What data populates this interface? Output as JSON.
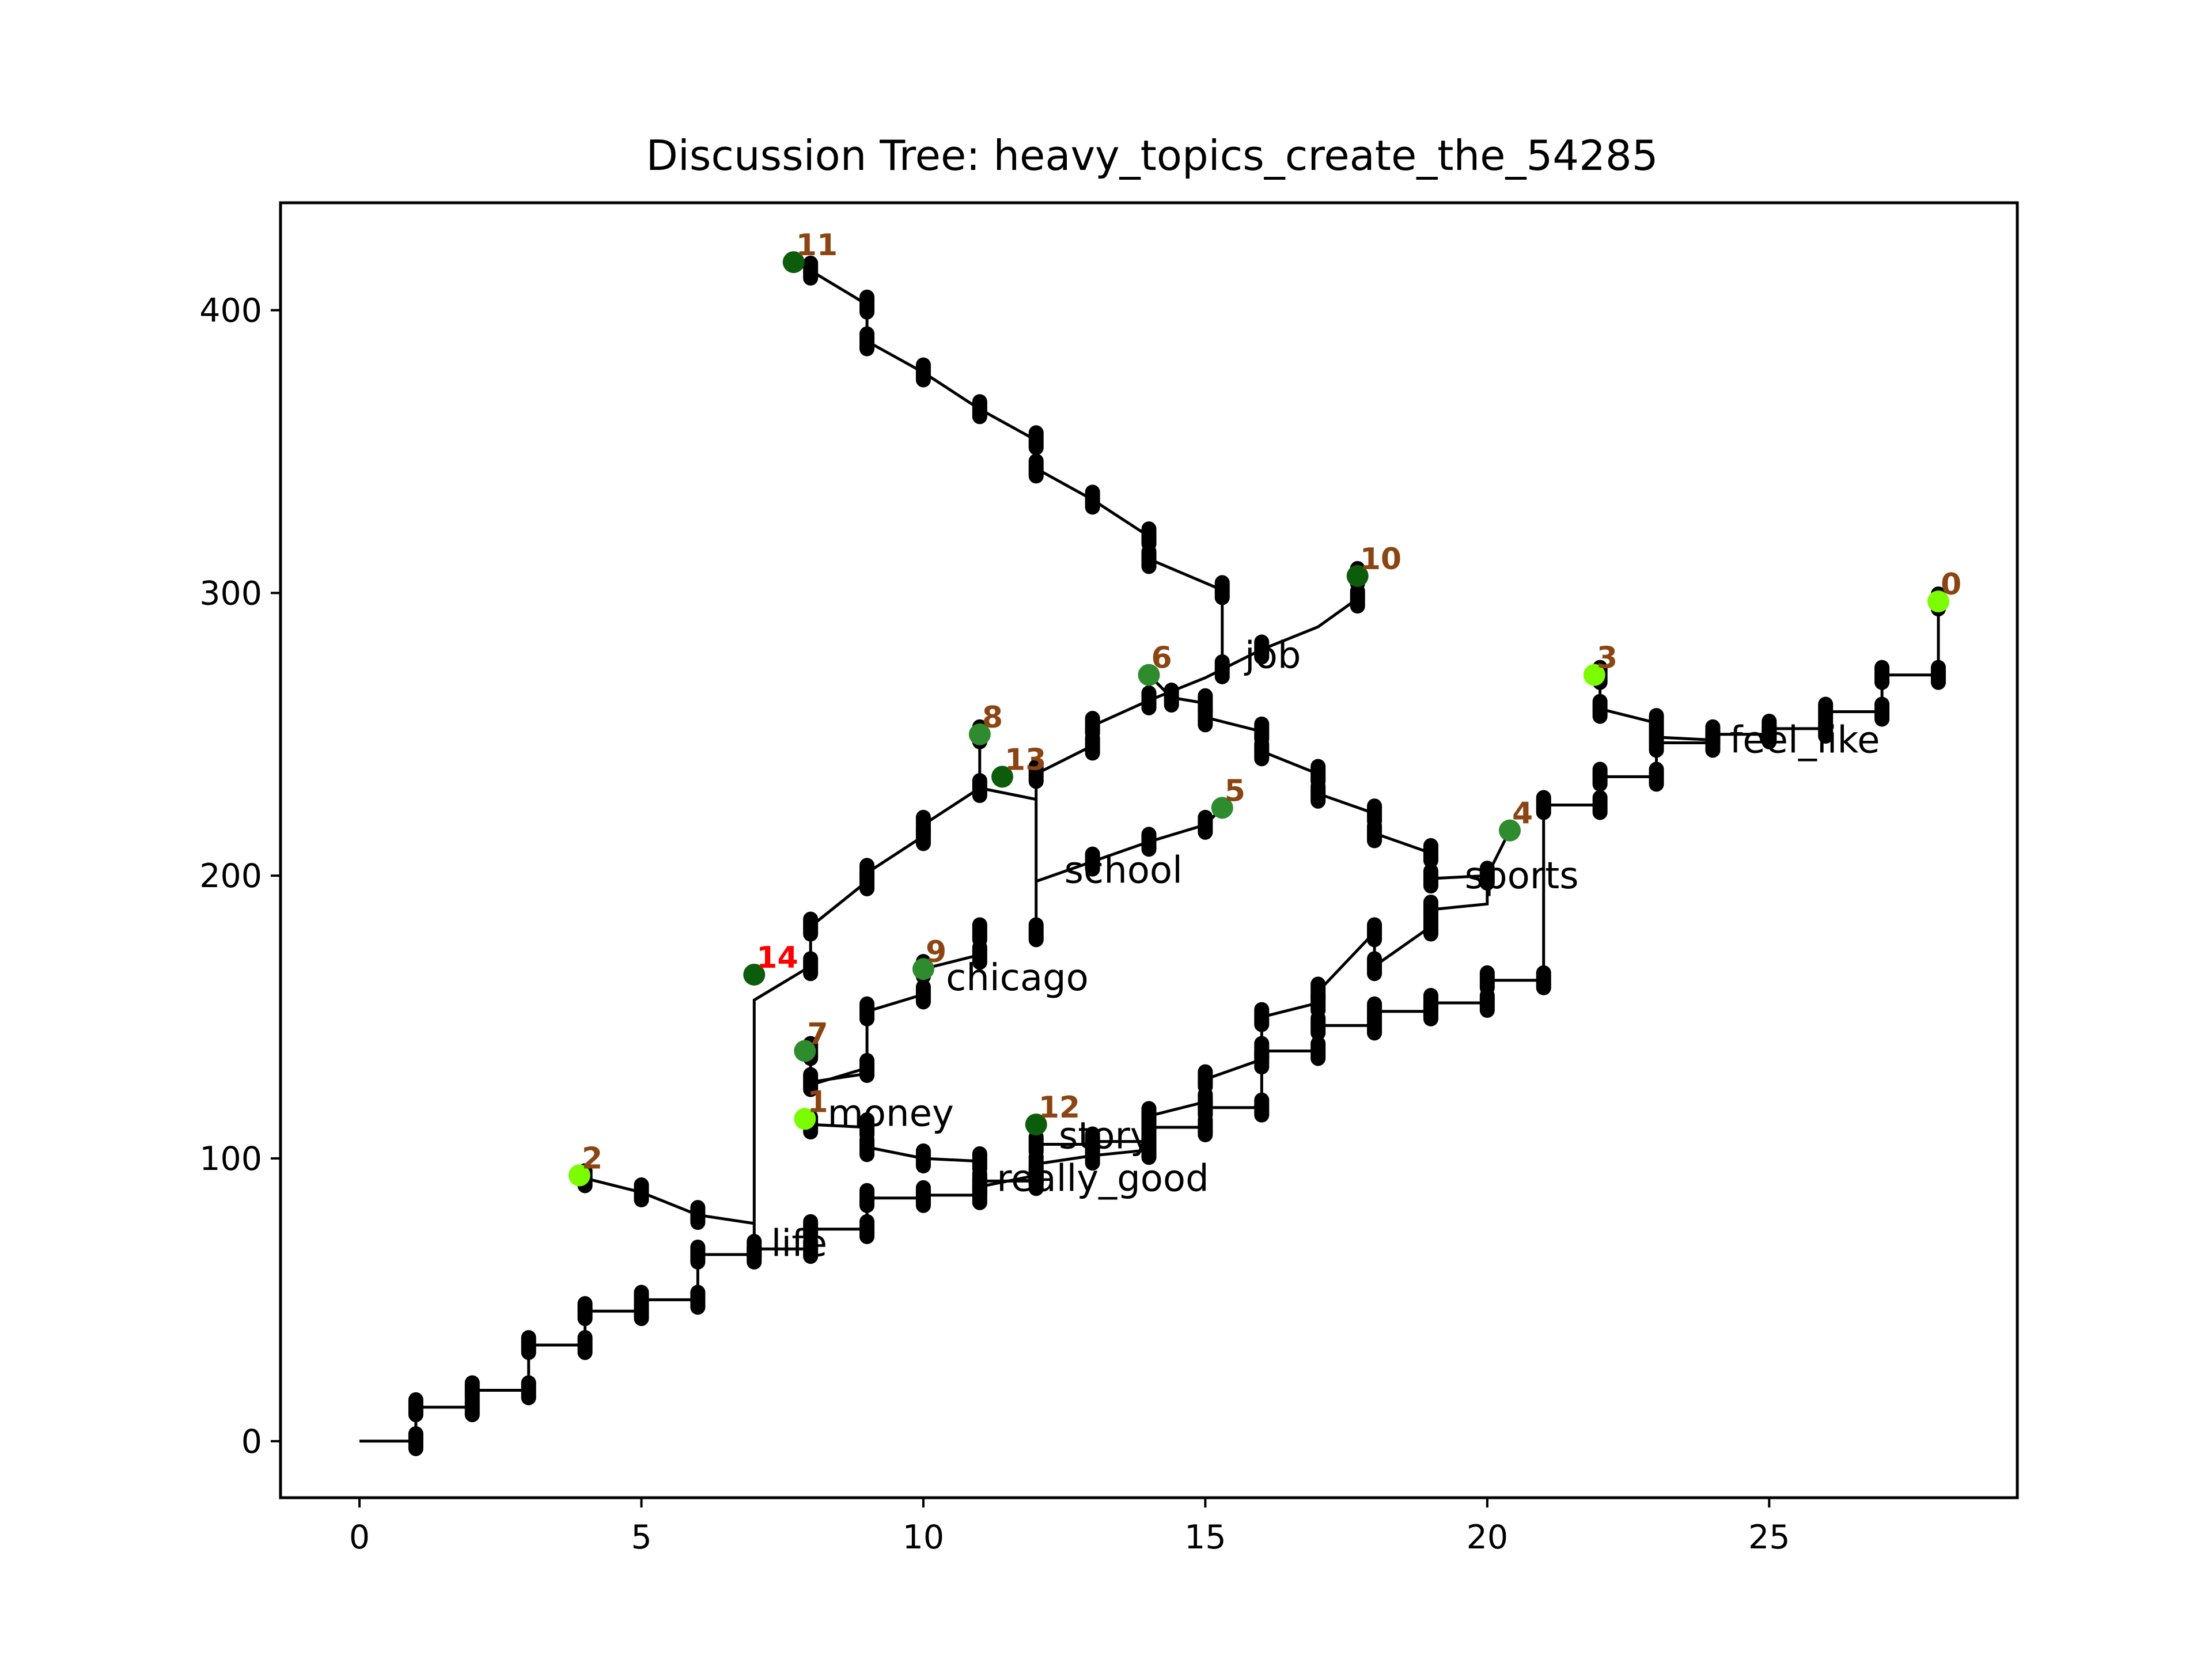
{
  "chart_data": {
    "type": "scatter",
    "title": "Discussion Tree: heavy_topics_create_the_54285",
    "xlabel": "",
    "ylabel": "",
    "xlim": [
      -1.4,
      29.4
    ],
    "ylim": [
      -20,
      438
    ],
    "x_ticks": [
      0,
      5,
      10,
      15,
      20,
      25
    ],
    "y_ticks": [
      0,
      100,
      200,
      300,
      400
    ],
    "grid": false,
    "colors": {
      "edge": "#000000",
      "node_label": "#8b4513",
      "highlight_label": "#ff0000",
      "node_dark": "#0b5d0b",
      "node_mid": "#2e8b2e",
      "node_light": "#7cfc00"
    },
    "paths": [
      {
        "name": "trunk",
        "points": [
          [
            0,
            0
          ],
          [
            1,
            0
          ],
          [
            1,
            12
          ],
          [
            2,
            12
          ],
          [
            2,
            18
          ],
          [
            3,
            18
          ],
          [
            3,
            34
          ],
          [
            4,
            34
          ],
          [
            4,
            46
          ],
          [
            5,
            46
          ],
          [
            5,
            50
          ],
          [
            6,
            50
          ],
          [
            6,
            66
          ],
          [
            7,
            66
          ],
          [
            7,
            68
          ],
          [
            8,
            68
          ],
          [
            8,
            75
          ],
          [
            9,
            75
          ],
          [
            9,
            86
          ],
          [
            10,
            86
          ],
          [
            10,
            87
          ],
          [
            11,
            87
          ],
          [
            11,
            92
          ],
          [
            12,
            92
          ],
          [
            12,
            105
          ],
          [
            13,
            105
          ],
          [
            13,
            106
          ],
          [
            14,
            106
          ],
          [
            14,
            111
          ],
          [
            15,
            111
          ],
          [
            15,
            118
          ],
          [
            16,
            118
          ],
          [
            16,
            138
          ],
          [
            17,
            138
          ],
          [
            17,
            147
          ],
          [
            18,
            147
          ],
          [
            18,
            152
          ],
          [
            19,
            152
          ],
          [
            19,
            155
          ],
          [
            20,
            155
          ],
          [
            20,
            163
          ],
          [
            21,
            163
          ],
          [
            21,
            225
          ],
          [
            22,
            225
          ],
          [
            22,
            235
          ],
          [
            23,
            235
          ],
          [
            23,
            247
          ],
          [
            24,
            247
          ],
          [
            24,
            250
          ],
          [
            25,
            250
          ],
          [
            25,
            252
          ],
          [
            26,
            252
          ],
          [
            26,
            258
          ],
          [
            27,
            258
          ],
          [
            27,
            271
          ],
          [
            28,
            271
          ],
          [
            28,
            297
          ]
        ]
      },
      {
        "name": "branch-2",
        "points": [
          [
            7,
            77
          ],
          [
            6,
            80
          ],
          [
            5,
            88
          ],
          [
            4,
            93
          ]
        ]
      },
      {
        "name": "branch-14",
        "points": [
          [
            7,
            68
          ],
          [
            7,
            156
          ],
          [
            8,
            168
          ],
          [
            8,
            182
          ],
          [
            9,
            198
          ],
          [
            9,
            201
          ],
          [
            10,
            214
          ],
          [
            10,
            218
          ],
          [
            11,
            231
          ]
        ]
      },
      {
        "name": "branch-8",
        "points": [
          [
            11,
            231
          ],
          [
            11,
            250
          ]
        ]
      },
      {
        "name": "branch-13",
        "points": [
          [
            11,
            231
          ],
          [
            12,
            227
          ],
          [
            12,
            180
          ],
          [
            12,
            236
          ]
        ]
      },
      {
        "name": "branch-10",
        "points": [
          [
            12,
            236
          ],
          [
            13,
            246
          ],
          [
            13,
            253
          ],
          [
            14,
            262
          ],
          [
            15,
            270
          ],
          [
            16,
            280
          ],
          [
            17,
            288
          ],
          [
            17.7,
            298
          ],
          [
            17.7,
            306
          ]
        ]
      },
      {
        "name": "branch-school",
        "points": [
          [
            12,
            198
          ],
          [
            13,
            205
          ],
          [
            14,
            212
          ],
          [
            15,
            218
          ],
          [
            15.3,
            224
          ]
        ]
      },
      {
        "name": "branch-11",
        "points": [
          [
            15.3,
            273
          ],
          [
            15.3,
            301
          ],
          [
            14,
            312
          ],
          [
            14,
            320
          ],
          [
            13,
            333
          ],
          [
            12,
            344
          ],
          [
            12,
            354
          ],
          [
            11,
            365
          ],
          [
            10,
            378
          ],
          [
            9,
            389
          ],
          [
            9,
            402
          ],
          [
            8,
            414
          ],
          [
            7.7,
            417
          ]
        ]
      },
      {
        "name": "branch-chicago",
        "points": [
          [
            9,
            130
          ],
          [
            8,
            127
          ],
          [
            8,
            138
          ],
          [
            8,
            126
          ],
          [
            9,
            132
          ],
          [
            9,
            152
          ],
          [
            10,
            158
          ],
          [
            10,
            167
          ],
          [
            11,
            172
          ],
          [
            11,
            180
          ]
        ]
      },
      {
        "name": "branch-1",
        "points": [
          [
            8,
            112
          ],
          [
            9,
            111
          ],
          [
            9,
            104
          ],
          [
            10,
            100
          ],
          [
            11,
            99
          ],
          [
            11,
            90
          ],
          [
            12,
            94
          ],
          [
            12,
            98
          ],
          [
            13,
            101
          ],
          [
            14,
            103
          ],
          [
            14,
            115
          ],
          [
            15,
            120
          ],
          [
            15,
            128
          ],
          [
            16,
            135
          ],
          [
            16,
            150
          ],
          [
            17,
            155
          ],
          [
            17,
            159
          ],
          [
            18,
            180
          ],
          [
            18,
            168
          ],
          [
            19,
            182
          ],
          [
            19,
            188
          ],
          [
            20,
            190
          ],
          [
            20,
            200
          ],
          [
            20.4,
            216
          ]
        ]
      },
      {
        "name": "branch-6",
        "points": [
          [
            20,
            200
          ],
          [
            19,
            199
          ],
          [
            19,
            208
          ],
          [
            18,
            215
          ],
          [
            18,
            222
          ],
          [
            17,
            229
          ],
          [
            17,
            236
          ],
          [
            16,
            244
          ],
          [
            16,
            251
          ],
          [
            15,
            256
          ],
          [
            15,
            261
          ],
          [
            14.4,
            263
          ],
          [
            14,
            271
          ]
        ]
      },
      {
        "name": "branch-3",
        "points": [
          [
            24,
            248
          ],
          [
            23,
            249
          ],
          [
            23,
            254
          ],
          [
            22,
            259
          ],
          [
            22,
            271
          ]
        ]
      }
    ],
    "ticks": [
      [
        1,
        0
      ],
      [
        1,
        12
      ],
      [
        2,
        12
      ],
      [
        2,
        18
      ],
      [
        3,
        18
      ],
      [
        3,
        34
      ],
      [
        4,
        34
      ],
      [
        4,
        46
      ],
      [
        5,
        46
      ],
      [
        5,
        50
      ],
      [
        6,
        50
      ],
      [
        6,
        66
      ],
      [
        7,
        66
      ],
      [
        7,
        68
      ],
      [
        8,
        68
      ],
      [
        8,
        75
      ],
      [
        9,
        75
      ],
      [
        9,
        86
      ],
      [
        10,
        86
      ],
      [
        10,
        87
      ],
      [
        11,
        87
      ],
      [
        11,
        92
      ],
      [
        12,
        92
      ],
      [
        12,
        105
      ],
      [
        13,
        105
      ],
      [
        13,
        106
      ],
      [
        14,
        106
      ],
      [
        14,
        111
      ],
      [
        15,
        111
      ],
      [
        15,
        118
      ],
      [
        16,
        118
      ],
      [
        16,
        138
      ],
      [
        17,
        138
      ],
      [
        17,
        147
      ],
      [
        18,
        147
      ],
      [
        18,
        152
      ],
      [
        19,
        152
      ],
      [
        19,
        155
      ],
      [
        20,
        155
      ],
      [
        20,
        163
      ],
      [
        21,
        163
      ],
      [
        21,
        225
      ],
      [
        22,
        225
      ],
      [
        22,
        235
      ],
      [
        23,
        235
      ],
      [
        23,
        247
      ],
      [
        24,
        247
      ],
      [
        24,
        250
      ],
      [
        25,
        250
      ],
      [
        25,
        252
      ],
      [
        26,
        252
      ],
      [
        26,
        258
      ],
      [
        27,
        258
      ],
      [
        27,
        271
      ],
      [
        28,
        271
      ],
      [
        28,
        297
      ],
      [
        6,
        80
      ],
      [
        5,
        88
      ],
      [
        4,
        93
      ],
      [
        8,
        168
      ],
      [
        8,
        182
      ],
      [
        9,
        198
      ],
      [
        9,
        201
      ],
      [
        10,
        214
      ],
      [
        10,
        218
      ],
      [
        11,
        231
      ],
      [
        11,
        250
      ],
      [
        12,
        180
      ],
      [
        12,
        236
      ],
      [
        13,
        246
      ],
      [
        13,
        253
      ],
      [
        14,
        262
      ],
      [
        16,
        280
      ],
      [
        17.7,
        298
      ],
      [
        17.7,
        306
      ],
      [
        13,
        205
      ],
      [
        14,
        212
      ],
      [
        15,
        218
      ],
      [
        15.3,
        273
      ],
      [
        15.3,
        301
      ],
      [
        14,
        312
      ],
      [
        14,
        320
      ],
      [
        13,
        333
      ],
      [
        12,
        344
      ],
      [
        12,
        354
      ],
      [
        11,
        365
      ],
      [
        10,
        378
      ],
      [
        9,
        389
      ],
      [
        9,
        402
      ],
      [
        8,
        414
      ],
      [
        8,
        127
      ],
      [
        8,
        138
      ],
      [
        9,
        132
      ],
      [
        9,
        152
      ],
      [
        10,
        158
      ],
      [
        10,
        167
      ],
      [
        11,
        172
      ],
      [
        11,
        180
      ],
      [
        8,
        112
      ],
      [
        9,
        111
      ],
      [
        9,
        104
      ],
      [
        10,
        100
      ],
      [
        11,
        99
      ],
      [
        11,
        90
      ],
      [
        12,
        94
      ],
      [
        12,
        98
      ],
      [
        13,
        101
      ],
      [
        14,
        103
      ],
      [
        14,
        115
      ],
      [
        15,
        120
      ],
      [
        15,
        128
      ],
      [
        16,
        135
      ],
      [
        16,
        150
      ],
      [
        17,
        155
      ],
      [
        17,
        159
      ],
      [
        18,
        180
      ],
      [
        18,
        168
      ],
      [
        19,
        182
      ],
      [
        19,
        188
      ],
      [
        20,
        200
      ],
      [
        19,
        199
      ],
      [
        19,
        208
      ],
      [
        18,
        215
      ],
      [
        18,
        222
      ],
      [
        17,
        229
      ],
      [
        17,
        236
      ],
      [
        16,
        244
      ],
      [
        16,
        251
      ],
      [
        15,
        256
      ],
      [
        15,
        261
      ],
      [
        14.4,
        263
      ],
      [
        23,
        249
      ],
      [
        23,
        254
      ],
      [
        22,
        259
      ],
      [
        22,
        271
      ]
    ],
    "nodes": [
      {
        "label": "0",
        "x": 28,
        "y": 297,
        "color": "#7cfc00",
        "label_color": "#8b4513"
      },
      {
        "label": "1",
        "x": 7.9,
        "y": 114,
        "color": "#7cfc00",
        "label_color": "#8b4513"
      },
      {
        "label": "2",
        "x": 3.9,
        "y": 94,
        "color": "#7cfc00",
        "label_color": "#8b4513"
      },
      {
        "label": "3",
        "x": 21.9,
        "y": 271,
        "color": "#7cfc00",
        "label_color": "#8b4513"
      },
      {
        "label": "4",
        "x": 20.4,
        "y": 216,
        "color": "#2e8b2e",
        "label_color": "#8b4513"
      },
      {
        "label": "5",
        "x": 15.3,
        "y": 224,
        "color": "#2e8b2e",
        "label_color": "#8b4513"
      },
      {
        "label": "6",
        "x": 14,
        "y": 271,
        "color": "#2e8b2e",
        "label_color": "#8b4513"
      },
      {
        "label": "7",
        "x": 7.9,
        "y": 138,
        "color": "#2e8b2e",
        "label_color": "#8b4513"
      },
      {
        "label": "8",
        "x": 11,
        "y": 250,
        "color": "#2e8b2e",
        "label_color": "#8b4513"
      },
      {
        "label": "9",
        "x": 10,
        "y": 167,
        "color": "#2e8b2e",
        "label_color": "#8b4513"
      },
      {
        "label": "10",
        "x": 17.7,
        "y": 306,
        "color": "#0b5d0b",
        "label_color": "#8b4513"
      },
      {
        "label": "11",
        "x": 7.7,
        "y": 417,
        "color": "#0b5d0b",
        "label_color": "#8b4513"
      },
      {
        "label": "12",
        "x": 12,
        "y": 112,
        "color": "#0b5d0b",
        "label_color": "#8b4513"
      },
      {
        "label": "13",
        "x": 11.4,
        "y": 235,
        "color": "#0b5d0b",
        "label_color": "#8b4513"
      },
      {
        "label": "14",
        "x": 7,
        "y": 165,
        "color": "#0b5d0b",
        "label_color": "#ff0000"
      }
    ],
    "topics": [
      {
        "label": "job",
        "x": 15.7,
        "y": 278
      },
      {
        "label": "feel_like",
        "x": 24.3,
        "y": 248
      },
      {
        "label": "school",
        "x": 12.5,
        "y": 202
      },
      {
        "label": "sports",
        "x": 19.6,
        "y": 200
      },
      {
        "label": "chicago",
        "x": 10.4,
        "y": 164
      },
      {
        "label": "money",
        "x": 8.3,
        "y": 116
      },
      {
        "label": "story",
        "x": 12.4,
        "y": 108
      },
      {
        "label": "really_good",
        "x": 11.3,
        "y": 93
      },
      {
        "label": "life",
        "x": 7.3,
        "y": 70
      }
    ]
  }
}
